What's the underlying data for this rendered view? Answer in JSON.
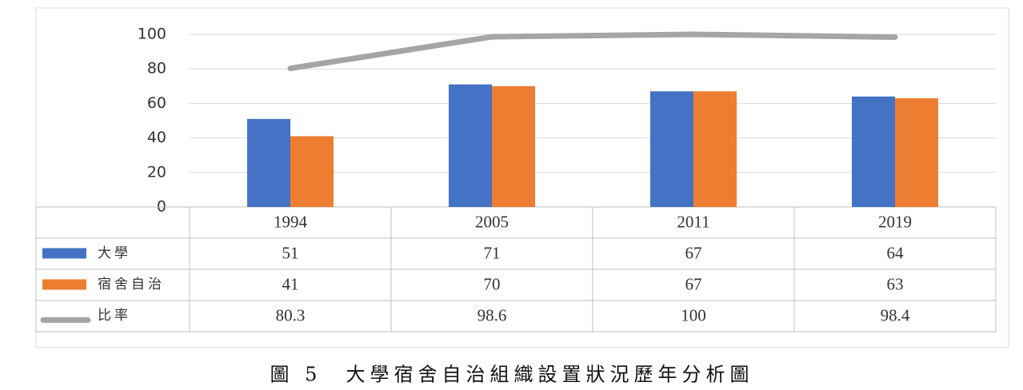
{
  "chart_data": {
    "type": "bar-line-table",
    "title": "圖 5　大學宿舍自治組織設置狀況歷年分析圖",
    "categories": [
      "1994",
      "2005",
      "2011",
      "2019"
    ],
    "series": [
      {
        "name": "大學",
        "color": "#4472c4",
        "type": "bar",
        "values": [
          51,
          71,
          67,
          64
        ]
      },
      {
        "name": "宿舍自治",
        "color": "#ed7d31",
        "type": "bar",
        "values": [
          41,
          70,
          67,
          63
        ]
      },
      {
        "name": "比率",
        "color": "#a5a5a5",
        "type": "line",
        "values": [
          80.3,
          98.6,
          100,
          98.4
        ]
      }
    ],
    "ylim": [
      0,
      100
    ],
    "yticks": [
      0,
      20,
      40,
      60,
      80,
      100
    ],
    "grid": true
  }
}
